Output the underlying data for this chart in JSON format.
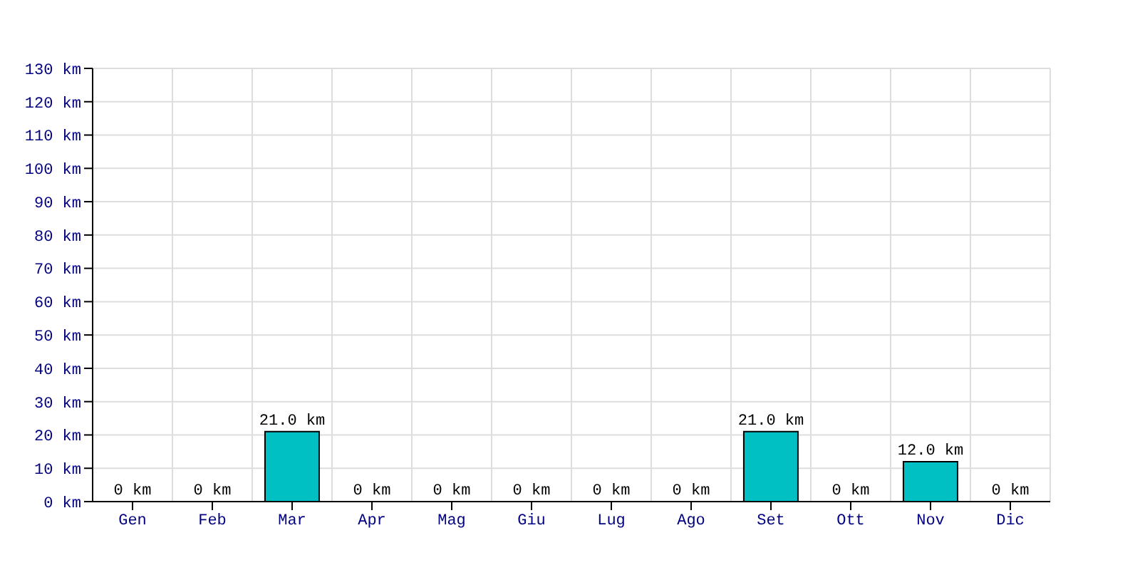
{
  "chart_data": {
    "type": "bar",
    "categories": [
      "Gen",
      "Feb",
      "Mar",
      "Apr",
      "Mag",
      "Giu",
      "Lug",
      "Ago",
      "Set",
      "Ott",
      "Nov",
      "Dic"
    ],
    "values": [
      0,
      0,
      21,
      0,
      0,
      0,
      0,
      0,
      21,
      0,
      12,
      0
    ],
    "value_labels": [
      "0 km",
      "0 km",
      "21.0 km",
      "0 km",
      "0 km",
      "0 km",
      "0 km",
      "0 km",
      "21.0 km",
      "0 km",
      "12.0 km",
      "0 km"
    ],
    "color": "#00c0c4",
    "ylim": [
      0,
      130
    ],
    "yticks": [
      {
        "value": 0,
        "label": "0 km"
      },
      {
        "value": 10,
        "label": "10 km"
      },
      {
        "value": 20,
        "label": "20 km"
      },
      {
        "value": 30,
        "label": "30 km"
      },
      {
        "value": 40,
        "label": "40 km"
      },
      {
        "value": 50,
        "label": "50 km"
      },
      {
        "value": 60,
        "label": "60 km"
      },
      {
        "value": 70,
        "label": "70 km"
      },
      {
        "value": 80,
        "label": "80 km"
      },
      {
        "value": 90,
        "label": "90 km"
      },
      {
        "value": 100,
        "label": "100 km"
      },
      {
        "value": 110,
        "label": "110 km"
      },
      {
        "value": 120,
        "label": "120 km"
      },
      {
        "value": 130,
        "label": "130 km"
      }
    ],
    "grid": true
  }
}
